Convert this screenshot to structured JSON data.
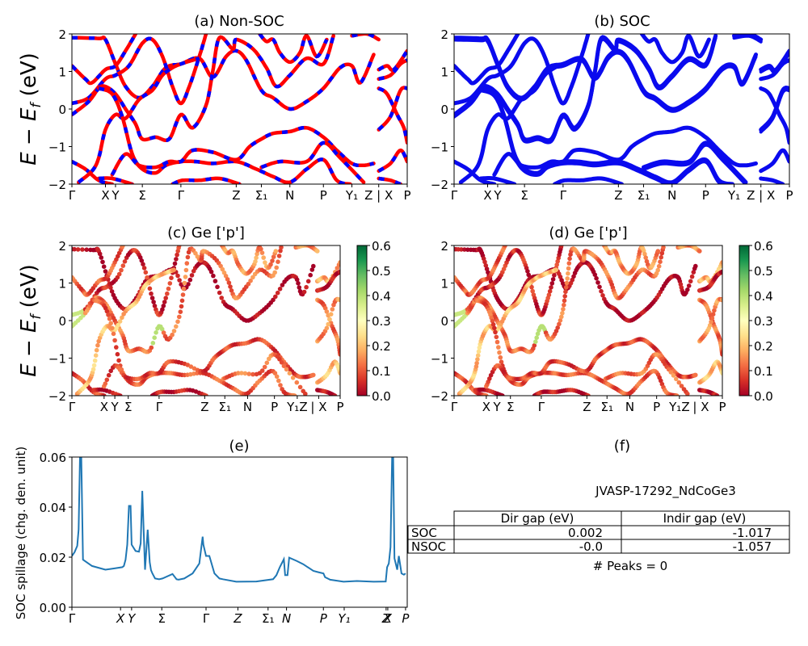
{
  "chart_data": [
    {
      "id": "a",
      "type": "line",
      "title": "(a) Non-SOC",
      "ylabel": "E − E_f (eV)",
      "ylim": [
        -2,
        2
      ],
      "yticks": [
        -2,
        -1,
        0,
        1,
        2
      ],
      "xticks": [
        {
          "label": "Γ",
          "pos": 0.0
        },
        {
          "label": "X",
          "pos": 0.1
        },
        {
          "label": "Y",
          "pos": 0.13
        },
        {
          "label": "Σ",
          "pos": 0.21
        },
        {
          "label": "Γ",
          "pos": 0.325
        },
        {
          "label": "Z",
          "pos": 0.49
        },
        {
          "label": "Σ₁",
          "pos": 0.565
        },
        {
          "label": "N",
          "pos": 0.65
        },
        {
          "label": "P",
          "pos": 0.75
        },
        {
          "label": "Y₁",
          "pos": 0.835
        },
        {
          "label": "Z | X",
          "pos": 0.915
        },
        {
          "label": "P",
          "pos": 1.0
        }
      ],
      "style": "red solid with blue dashes overlay",
      "colors": {
        "primary": "#ff0000",
        "overlay": "#0000ff"
      }
    },
    {
      "id": "b",
      "type": "line",
      "title": "(b) SOC",
      "ylim": [
        -2,
        2
      ],
      "yticks": [
        -2,
        -1,
        0,
        1,
        2
      ],
      "style": "blue solid",
      "colors": {
        "primary": "#0000ee"
      }
    },
    {
      "id": "c",
      "type": "scatter",
      "title": "(c)  Ge ['p']",
      "ylabel": "E − E_f (eV)",
      "ylim": [
        -2,
        2
      ],
      "yticks": [
        -2,
        -1,
        0,
        1,
        2
      ],
      "xticks": [
        {
          "label": "Γ",
          "pos": 0.0
        },
        {
          "label": "X",
          "pos": 0.12
        },
        {
          "label": "Y",
          "pos": 0.16
        },
        {
          "label": "Σ",
          "pos": 0.21
        },
        {
          "label": "Γ",
          "pos": 0.325
        },
        {
          "label": "Z",
          "pos": 0.495
        },
        {
          "label": "Σ₁",
          "pos": 0.57
        },
        {
          "label": "N",
          "pos": 0.655
        },
        {
          "label": "P",
          "pos": 0.755
        },
        {
          "label": "Y₁Z",
          "pos": 0.84
        },
        {
          "label": "| X",
          "pos": 0.92
        },
        {
          "label": "P",
          "pos": 1.0
        }
      ],
      "colorbar": {
        "min": 0.0,
        "max": 0.6,
        "ticks": [
          "0.0",
          "0.1",
          "0.2",
          "0.3",
          "0.4",
          "0.5",
          "0.6"
        ],
        "cmap": "RdYlGn"
      }
    },
    {
      "id": "d",
      "type": "scatter",
      "title": "(d) Ge ['p']",
      "ylim": [
        -2,
        2
      ],
      "yticks": [
        -2,
        -1,
        0,
        1,
        2
      ],
      "colorbar": {
        "min": 0.0,
        "max": 0.6,
        "ticks": [
          "0.0",
          "0.1",
          "0.2",
          "0.3",
          "0.4",
          "0.5",
          "0.6"
        ],
        "cmap": "RdYlGn"
      }
    },
    {
      "id": "e",
      "type": "line",
      "title": "(e)",
      "ylabel": "SOC spillage (chg. den. unit)",
      "ylim": [
        0.0,
        0.06
      ],
      "yticks": [
        "0.00",
        "0.02",
        "0.04",
        "0.06"
      ],
      "xticks": [
        {
          "label": "Γ",
          "pos": 0.0
        },
        {
          "label": "X",
          "pos": 0.145
        },
        {
          "label": "Y",
          "pos": 0.178
        },
        {
          "label": "Σ",
          "pos": 0.268
        },
        {
          "label": "Γ",
          "pos": 0.4
        },
        {
          "label": "Z",
          "pos": 0.495
        },
        {
          "label": "Σ₁",
          "pos": 0.585
        },
        {
          "label": "N",
          "pos": 0.64
        },
        {
          "label": "P",
          "pos": 0.75
        },
        {
          "label": "Y₁",
          "pos": 0.812
        },
        {
          "label": "Z",
          "pos": 0.937
        },
        {
          "label": "X",
          "pos": 0.942
        },
        {
          "label": "P",
          "pos": 0.995
        }
      ],
      "color": "#1f77b4",
      "x": [
        0.0,
        0.008,
        0.016,
        0.02,
        0.024,
        0.028,
        0.033,
        0.06,
        0.1,
        0.125,
        0.15,
        0.155,
        0.16,
        0.165,
        0.17,
        0.175,
        0.178,
        0.19,
        0.2,
        0.205,
        0.21,
        0.218,
        0.226,
        0.232,
        0.236,
        0.24,
        0.248,
        0.26,
        0.27,
        0.3,
        0.312,
        0.318,
        0.335,
        0.36,
        0.38,
        0.39,
        0.392,
        0.4,
        0.41,
        0.425,
        0.44,
        0.45,
        0.49,
        0.55,
        0.6,
        0.61,
        0.62,
        0.632,
        0.636,
        0.643,
        0.648,
        0.67,
        0.69,
        0.72,
        0.735,
        0.75,
        0.755,
        0.77,
        0.81,
        0.85,
        0.9,
        0.936,
        0.94,
        0.945,
        0.95,
        0.955,
        0.958,
        0.962,
        0.97,
        0.975,
        0.983,
        0.99,
        0.995
      ],
      "y": [
        0.0205,
        0.022,
        0.0245,
        0.031,
        0.06,
        0.06,
        0.019,
        0.0165,
        0.015,
        0.0155,
        0.016,
        0.0165,
        0.019,
        0.025,
        0.0405,
        0.0405,
        0.025,
        0.0225,
        0.0222,
        0.0255,
        0.0465,
        0.015,
        0.031,
        0.018,
        0.0148,
        0.0135,
        0.0115,
        0.0112,
        0.0115,
        0.0133,
        0.0112,
        0.011,
        0.0115,
        0.0135,
        0.0175,
        0.0282,
        0.025,
        0.0205,
        0.0205,
        0.0135,
        0.0115,
        0.0112,
        0.0102,
        0.0103,
        0.0112,
        0.0128,
        0.016,
        0.0192,
        0.0128,
        0.0128,
        0.0198,
        0.0185,
        0.0172,
        0.0145,
        0.014,
        0.0135,
        0.012,
        0.011,
        0.0102,
        0.0105,
        0.0102,
        0.0103,
        0.016,
        0.0175,
        0.024,
        0.06,
        0.06,
        0.0195,
        0.015,
        0.0205,
        0.0135,
        0.013,
        0.0135
      ]
    },
    {
      "id": "f",
      "type": "table",
      "title": "(f)",
      "subtitle": "JVASP-17292_NdCoGe3",
      "columns": [
        "Dir gap (eV)",
        "Indir gap (eV)"
      ],
      "rows": [
        {
          "label": "SOC",
          "values": [
            "0.002",
            "-1.017"
          ]
        },
        {
          "label": "NSOC",
          "values": [
            "-0.0",
            "-1.057"
          ]
        }
      ],
      "footer": "# Peaks = 0"
    }
  ],
  "bands": [
    {
      "pts": [
        [
          0,
          1.9
        ],
        [
          0.08,
          1.88
        ],
        [
          0.1,
          1.85
        ],
        [
          0.13,
          1.2
        ],
        [
          0.16,
          0.6
        ],
        [
          0.2,
          0.3
        ],
        [
          0.24,
          0.6
        ],
        [
          0.28,
          1.1
        ],
        [
          0.325,
          1.2
        ],
        [
          0.38,
          1.35
        ],
        [
          0.42,
          0.85
        ],
        [
          0.46,
          1.4
        ],
        [
          0.49,
          1.55
        ],
        [
          0.52,
          1.3
        ],
        [
          0.565,
          0.5
        ],
        [
          0.6,
          0.3
        ],
        [
          0.65,
          0.0
        ],
        [
          0.7,
          0.2
        ],
        [
          0.75,
          0.55
        ],
        [
          0.8,
          1.1
        ],
        [
          0.835,
          1.15
        ],
        [
          0.86,
          0.7
        ],
        [
          0.9,
          1.45
        ]
      ],
      "w": 0.0
    },
    {
      "pts": [
        [
          0,
          1.15
        ],
        [
          0.04,
          0.8
        ],
        [
          0.06,
          0.7
        ],
        [
          0.1,
          1.05
        ],
        [
          0.13,
          1.15
        ],
        [
          0.16,
          1.55
        ],
        [
          0.19,
          2.0
        ]
      ],
      "w": 0.1
    },
    {
      "pts": [
        [
          0,
          0.15
        ],
        [
          0.05,
          0.3
        ],
        [
          0.1,
          0.8
        ],
        [
          0.13,
          0.9
        ],
        [
          0.17,
          1.15
        ],
        [
          0.21,
          1.75
        ],
        [
          0.24,
          1.85
        ],
        [
          0.27,
          1.4
        ],
        [
          0.3,
          0.6
        ],
        [
          0.325,
          0.15
        ],
        [
          0.35,
          0.6
        ],
        [
          0.38,
          1.4
        ],
        [
          0.4,
          2.0
        ]
      ],
      "w": 0.05
    },
    {
      "pts": [
        [
          0,
          -0.15
        ],
        [
          0.05,
          0.2
        ],
        [
          0.08,
          0.55
        ],
        [
          0.1,
          0.6
        ],
        [
          0.13,
          0.4
        ],
        [
          0.16,
          0.0
        ],
        [
          0.19,
          -0.4
        ],
        [
          0.21,
          -0.8
        ],
        [
          0.25,
          -0.75
        ],
        [
          0.29,
          -0.8
        ],
        [
          0.325,
          -0.15
        ],
        [
          0.36,
          -0.5
        ],
        [
          0.4,
          0.1
        ],
        [
          0.42,
          1.0
        ],
        [
          0.44,
          1.9
        ],
        [
          0.48,
          1.6
        ],
        [
          0.49,
          1.85
        ],
        [
          0.54,
          1.6
        ],
        [
          0.58,
          1.1
        ],
        [
          0.61,
          0.6
        ],
        [
          0.65,
          0.9
        ],
        [
          0.7,
          1.35
        ],
        [
          0.75,
          1.2
        ],
        [
          0.78,
          1.95
        ]
      ],
      "w": 0.12
    },
    {
      "pts": [
        [
          0,
          -1.4
        ],
        [
          0.04,
          -1.6
        ],
        [
          0.08,
          -1.9
        ],
        [
          0.12,
          -2.0
        ]
      ],
      "w": 0.08
    },
    {
      "pts": [
        [
          0.02,
          -1.95
        ],
        [
          0.06,
          -1.65
        ],
        [
          0.08,
          -1.3
        ],
        [
          0.1,
          -0.55
        ],
        [
          0.13,
          -0.15
        ],
        [
          0.16,
          -0.25
        ],
        [
          0.2,
          0.25
        ],
        [
          0.24,
          0.5
        ],
        [
          0.27,
          0.9
        ],
        [
          0.3,
          1.1
        ],
        [
          0.325,
          1.2
        ],
        [
          0.36,
          1.3
        ],
        [
          0.38,
          1.35
        ]
      ],
      "w": 0.2
    },
    {
      "pts": [
        [
          0.08,
          0.55
        ],
        [
          0.12,
          0.4
        ],
        [
          0.15,
          -0.2
        ],
        [
          0.18,
          -1.2
        ],
        [
          0.21,
          -1.6
        ],
        [
          0.25,
          -1.7
        ],
        [
          0.28,
          -1.5
        ],
        [
          0.325,
          -1.4
        ],
        [
          0.37,
          -1.4
        ],
        [
          0.42,
          -1.45
        ],
        [
          0.49,
          -1.4
        ],
        [
          0.55,
          -1.6
        ],
        [
          0.6,
          -1.8
        ],
        [
          0.65,
          -1.95
        ],
        [
          0.7,
          -1.6
        ],
        [
          0.75,
          -1.35
        ],
        [
          0.79,
          -1.9
        ],
        [
          0.83,
          -2.0
        ]
      ],
      "w": 0.1
    },
    {
      "pts": [
        [
          0.08,
          -1.85
        ],
        [
          0.12,
          -1.85
        ],
        [
          0.18,
          -2.0
        ]
      ],
      "w": 0.02
    },
    {
      "pts": [
        [
          0.12,
          -1.75
        ],
        [
          0.16,
          -1.2
        ],
        [
          0.2,
          -1.5
        ],
        [
          0.25,
          -1.55
        ],
        [
          0.29,
          -1.4
        ],
        [
          0.325,
          -1.4
        ],
        [
          0.36,
          -1.1
        ],
        [
          0.42,
          -1.15
        ],
        [
          0.49,
          -1.35
        ],
        [
          0.53,
          -1.0
        ],
        [
          0.565,
          -0.8
        ],
        [
          0.6,
          -0.65
        ],
        [
          0.65,
          -0.6
        ],
        [
          0.7,
          -0.5
        ],
        [
          0.75,
          -0.75
        ],
        [
          0.79,
          -1.1
        ],
        [
          0.835,
          -1.45
        ],
        [
          0.87,
          -1.5
        ],
        [
          0.9,
          -1.45
        ]
      ],
      "w": 0.08
    },
    {
      "pts": [
        [
          0.565,
          -1.55
        ],
        [
          0.62,
          -1.4
        ],
        [
          0.7,
          -1.4
        ],
        [
          0.75,
          -0.9
        ],
        [
          0.8,
          -1.3
        ],
        [
          0.87,
          -1.95
        ]
      ],
      "w": 0.12
    },
    {
      "pts": [
        [
          0.3,
          -2.0
        ],
        [
          0.33,
          -1.9
        ],
        [
          0.38,
          -1.9
        ],
        [
          0.44,
          -1.85
        ],
        [
          0.5,
          -2.0
        ]
      ],
      "w": 0.03
    },
    {
      "pts": [
        [
          0.56,
          2.0
        ],
        [
          0.58,
          1.8
        ],
        [
          0.6,
          1.85
        ],
        [
          0.62,
          1.5
        ],
        [
          0.65,
          1.25
        ],
        [
          0.68,
          1.5
        ],
        [
          0.7,
          1.95
        ],
        [
          0.73,
          1.4
        ],
        [
          0.76,
          1.85
        ]
      ],
      "w": 0.15
    },
    {
      "pts": [
        [
          0.915,
          1.05
        ],
        [
          0.94,
          1.15
        ],
        [
          0.96,
          1.05
        ],
        [
          1.0,
          1.55
        ]
      ],
      "w": 0.18
    },
    {
      "pts": [
        [
          0.915,
          0.8
        ],
        [
          0.95,
          0.9
        ],
        [
          0.98,
          1.2
        ],
        [
          1.0,
          1.3
        ]
      ],
      "w": 0.02
    },
    {
      "pts": [
        [
          0.915,
          0.55
        ],
        [
          0.94,
          0.4
        ],
        [
          0.97,
          -0.15
        ],
        [
          0.99,
          -0.5
        ],
        [
          1.0,
          -0.9
        ]
      ],
      "w": 0.12
    },
    {
      "pts": [
        [
          0.915,
          -0.55
        ],
        [
          0.95,
          -0.2
        ],
        [
          0.98,
          0.5
        ],
        [
          1.0,
          0.55
        ]
      ],
      "w": 0.15
    },
    {
      "pts": [
        [
          0.915,
          -1.65
        ],
        [
          0.95,
          -1.45
        ],
        [
          0.98,
          -1.1
        ],
        [
          1.0,
          -1.4
        ]
      ],
      "w": 0.2
    },
    {
      "pts": [
        [
          0.915,
          -1.85
        ],
        [
          0.95,
          -1.9
        ],
        [
          0.98,
          -2.0
        ]
      ],
      "w": 0.02
    },
    {
      "pts": [
        [
          0.835,
          1.95
        ],
        [
          0.88,
          2.0
        ],
        [
          0.915,
          1.85
        ]
      ],
      "w": 0.15
    }
  ]
}
